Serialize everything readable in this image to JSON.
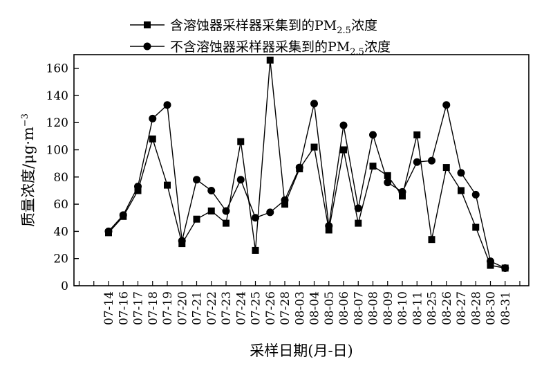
{
  "chart_data": {
    "type": "line",
    "categories": [
      "07-14",
      "07-16",
      "07-17",
      "07-18",
      "07-19",
      "07-20",
      "07-21",
      "07-22",
      "07-23",
      "07-24",
      "07-25",
      "07-26",
      "07-28",
      "08-03",
      "08-04",
      "08-05",
      "08-06",
      "08-07",
      "08-08",
      "08-09",
      "08-10",
      "08-11",
      "08-25",
      "08-26",
      "08-27",
      "08-28",
      "08-30",
      "08-31"
    ],
    "series": [
      {
        "name_main": "含溶蚀器采样器采集到的PM",
        "name_sub": "2.5",
        "name_tail": "浓度",
        "marker": "square",
        "values": [
          39,
          51,
          70,
          108,
          74,
          31,
          49,
          55,
          46,
          106,
          26,
          166,
          60,
          86,
          102,
          41,
          100,
          46,
          88,
          81,
          66,
          111,
          34,
          87,
          70,
          43,
          15,
          13
        ]
      },
      {
        "name_main": "不含溶蚀器采样器采集到的PM",
        "name_sub": "2.5",
        "name_tail": "浓度",
        "marker": "circle",
        "values": [
          40,
          52,
          73,
          123,
          133,
          33,
          78,
          70,
          55,
          78,
          50,
          54,
          63,
          87,
          134,
          44,
          118,
          57,
          111,
          76,
          69,
          91,
          92,
          133,
          83,
          67,
          18,
          13
        ]
      }
    ],
    "xlabel": "采样日期(月-日)",
    "ylabel": "质量浓度/μg·m",
    "ylabel_sup": "−3",
    "ylim": [
      0,
      170
    ],
    "yticks": [
      0,
      20,
      40,
      60,
      80,
      100,
      120,
      140,
      160
    ],
    "grid": false,
    "legend_position": "top-center"
  }
}
